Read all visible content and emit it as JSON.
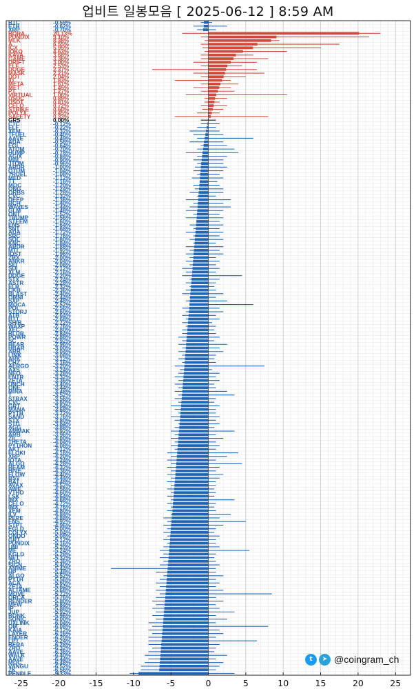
{
  "title": "업비트 일봉모음 [ 2025-06-12 ]  8:59 AM",
  "credit": {
    "handle": "@coingram_ch",
    "icons": [
      "twitter-icon",
      "telegram-icon"
    ]
  },
  "colors": {
    "positive": "#d2493b",
    "negative": "#1f65b6",
    "neutral": "#111111"
  },
  "chart_data": {
    "type": "bar",
    "orientation": "horizontal",
    "xlim": [
      -27,
      27
    ],
    "xticks": [
      -25,
      -20,
      -15,
      -10,
      -5,
      0,
      5,
      10,
      15,
      20,
      25
    ],
    "grid": true,
    "series_fields": [
      "symbol",
      "change_pct",
      "low_pct",
      "high_pct"
    ],
    "rows": [
      [
        "BTC",
        -0.59,
        -1.0,
        0.5
      ],
      [
        "ETH",
        -0.62,
        -2.0,
        2.5
      ],
      [
        "XRP",
        -0.7,
        -1.5,
        1.0
      ],
      [
        "BORA",
        20.13,
        -3.5,
        23.0
      ],
      [
        "PUNDIX",
        9.1,
        -1.0,
        21.5
      ],
      [
        "MLK",
        8.38,
        -0.5,
        9.5
      ],
      [
        "A",
        6.55,
        -1.0,
        17.5
      ],
      [
        "ICX",
        5.95,
        -0.8,
        15.0
      ],
      [
        "IOKO",
        4.63,
        -0.5,
        10.5
      ],
      [
        "KAVA",
        3.68,
        -1.0,
        6.0
      ],
      [
        "GAME2",
        3.36,
        -1.0,
        8.0
      ],
      [
        "DRIFT",
        3.0,
        -2.0,
        6.5
      ],
      [
        "ELF",
        2.53,
        -1.0,
        4.5
      ],
      [
        "DOGE2",
        2.37,
        -7.5,
        6.5
      ],
      [
        "MASK",
        2.21,
        -2.0,
        7.5
      ],
      [
        "DOT",
        2.04,
        -1.0,
        5.0
      ],
      [
        "ID",
        1.83,
        -4.5,
        3.0
      ],
      [
        "META",
        1.61,
        -1.0,
        4.0
      ],
      [
        "MET",
        1.45,
        -2.0,
        3.0
      ],
      [
        "PT",
        1.27,
        -1.0,
        3.5
      ],
      [
        "VIRTUAL",
        1.06,
        -3.0,
        10.5
      ],
      [
        "USDC",
        0.89,
        -0.5,
        2.5
      ],
      [
        "USDT",
        0.81,
        -0.5,
        1.5
      ],
      [
        "CELO",
        0.72,
        -1.0,
        2.5
      ],
      [
        "STRIKE",
        0.6,
        -0.8,
        2.0
      ],
      [
        "POLYX",
        0.45,
        -1.5,
        1.5
      ],
      [
        "SAFETY",
        0.33,
        -4.5,
        8.0
      ],
      [
        "GRS",
        0.0,
        -1.0,
        1.0
      ],
      [
        "CTC",
        -0.12,
        -1.0,
        1.5
      ],
      [
        "ELF2",
        -0.22,
        -1.5,
        1.0
      ],
      [
        "XEM",
        -0.32,
        -2.5,
        1.5
      ],
      [
        "TFUEL",
        -0.4,
        -2.0,
        2.0
      ],
      [
        "AAVE",
        -0.49,
        -1.5,
        6.0
      ],
      [
        "ADA",
        -0.58,
        -2.5,
        2.0
      ],
      [
        "EGL",
        -0.64,
        -1.0,
        2.5
      ],
      [
        "ATOM",
        -0.7,
        -1.5,
        3.5
      ],
      [
        "HUMP",
        -0.78,
        -3.0,
        4.0
      ],
      [
        "AGIX",
        -0.84,
        -1.5,
        2.5
      ],
      [
        "MBL",
        -0.9,
        -2.0,
        2.0
      ],
      [
        "JTOM",
        -0.96,
        -1.5,
        2.0
      ],
      [
        "ARDR",
        -1.0,
        -1.8,
        2.5
      ],
      [
        "QTUM",
        -1.04,
        -2.0,
        2.0
      ],
      [
        "TRUEL",
        -1.08,
        -1.5,
        1.5
      ],
      [
        "MED",
        -1.12,
        -2.2,
        2.0
      ],
      [
        "TT",
        -1.16,
        -1.0,
        1.2
      ],
      [
        "MOC",
        -1.2,
        -2.0,
        1.5
      ],
      [
        "ONG",
        -1.24,
        -1.8,
        2.0
      ],
      [
        "ORBS",
        -1.28,
        -2.5,
        2.0
      ],
      [
        "CVC",
        -1.32,
        -1.5,
        1.0
      ],
      [
        "DEEP",
        -1.36,
        -3.0,
        3.0
      ],
      [
        "BCH",
        -1.4,
        -2.0,
        2.0
      ],
      [
        "WAVES",
        -1.44,
        -2.5,
        3.0
      ],
      [
        "GLM",
        -1.48,
        -3.0,
        2.0
      ],
      [
        "ONT",
        -1.52,
        -2.0,
        1.5
      ],
      [
        "TRUMP",
        -1.56,
        -3.0,
        2.0
      ],
      [
        "STEEM",
        -1.6,
        -1.5,
        1.5
      ],
      [
        "ENS",
        -1.64,
        -2.5,
        2.0
      ],
      [
        "SNT",
        -1.68,
        -2.0,
        1.5
      ],
      [
        "ADA2",
        -1.72,
        -3.0,
        2.0
      ],
      [
        "SRC",
        -1.76,
        -2.0,
        1.5
      ],
      [
        "SOL",
        -1.8,
        -2.5,
        2.0
      ],
      [
        "KNC",
        -1.84,
        -2.0,
        1.0
      ],
      [
        "ARDR2",
        -1.88,
        -3.0,
        2.0
      ],
      [
        "MTL",
        -1.92,
        -2.5,
        1.5
      ],
      [
        "IOST",
        -1.96,
        -3.0,
        2.0
      ],
      [
        "ZRX",
        -2.0,
        -2.5,
        1.0
      ],
      [
        "ANKR",
        -2.04,
        -3.0,
        1.5
      ],
      [
        "SEI",
        -2.08,
        -2.5,
        1.0
      ],
      [
        "SUI",
        -2.12,
        -3.5,
        1.5
      ],
      [
        "XLM",
        -2.16,
        -3.0,
        1.0
      ],
      [
        "DOGE",
        -2.2,
        -3.5,
        4.5
      ],
      [
        "STX",
        -2.24,
        -2.5,
        1.5
      ],
      [
        "ASTR",
        -2.28,
        -3.0,
        1.0
      ],
      [
        "FLR",
        -2.32,
        -2.5,
        0.8
      ],
      [
        "CKB",
        -2.36,
        -3.0,
        1.0
      ],
      [
        "BLAST",
        -2.4,
        -3.5,
        2.0
      ],
      [
        "OMNI",
        -2.44,
        -2.5,
        1.0
      ],
      [
        "SXP",
        -2.48,
        -3.0,
        2.5
      ],
      [
        "MOCA",
        -2.52,
        -2.5,
        6.0
      ],
      [
        "POL",
        -2.56,
        -3.5,
        1.5
      ],
      [
        "STORJ",
        -2.6,
        -3.0,
        2.0
      ],
      [
        "ATH",
        -2.64,
        -3.5,
        1.0
      ],
      [
        "BTT",
        -2.68,
        -3.0,
        1.5
      ],
      [
        "SHIB",
        -2.72,
        -3.5,
        0.5
      ],
      [
        "WAXP",
        -2.76,
        -3.0,
        1.0
      ],
      [
        "XEC",
        -2.8,
        -3.5,
        0.8
      ],
      [
        "BLUR",
        -2.84,
        -3.5,
        1.0
      ],
      [
        "POWR",
        -2.88,
        -4.0,
        1.5
      ],
      [
        "SC",
        -2.92,
        -3.5,
        0.8
      ],
      [
        "BEAR",
        -2.96,
        -4.0,
        2.5
      ],
      [
        "HBAR",
        -3.0,
        -3.5,
        1.5
      ],
      [
        "ARB",
        -3.04,
        -4.0,
        2.0
      ],
      [
        "LINK",
        -3.08,
        -3.5,
        1.0
      ],
      [
        "ARK",
        -3.12,
        -4.0,
        0.8
      ],
      [
        "CHZ",
        -3.16,
        -3.5,
        1.0
      ],
      [
        "AERGO",
        -3.2,
        -4.5,
        7.5
      ],
      [
        "AXS",
        -3.24,
        -3.8,
        0.5
      ],
      [
        "NEO",
        -3.28,
        -4.0,
        1.5
      ],
      [
        "ENTR",
        -3.32,
        -4.5,
        1.0
      ],
      [
        "ZETA",
        -3.36,
        -4.0,
        1.5
      ],
      [
        "UNCH",
        -3.4,
        -4.5,
        0.8
      ],
      [
        "ONE",
        -3.44,
        -4.0,
        1.0
      ],
      [
        "MINA",
        -3.48,
        -4.5,
        2.5
      ],
      [
        "T",
        -3.52,
        -4.0,
        3.5
      ],
      [
        "STRAX",
        -3.56,
        -4.5,
        1.0
      ],
      [
        "CVC2",
        -3.6,
        -4.0,
        0.8
      ],
      [
        "GRT",
        -3.64,
        -5.0,
        1.5
      ],
      [
        "MANA",
        -3.68,
        -4.5,
        1.0
      ],
      [
        "PYTH",
        -3.72,
        -4.0,
        1.0
      ],
      [
        "SAND",
        -3.76,
        -5.0,
        1.5
      ],
      [
        "STX2",
        -3.8,
        -4.5,
        1.0
      ],
      [
        "STG",
        -3.84,
        -4.0,
        1.5
      ],
      [
        "AGG",
        -3.88,
        -4.5,
        0.8
      ],
      [
        "AMMAK",
        -3.92,
        -5.0,
        3.5
      ],
      [
        "ARB2",
        -3.96,
        -4.5,
        1.0
      ],
      [
        "ZIL",
        -4.0,
        -5.0,
        2.0
      ],
      [
        "THETA",
        -4.04,
        -4.5,
        1.0
      ],
      [
        "PYTHON",
        -4.08,
        -5.0,
        1.5
      ],
      [
        "AKT",
        -4.12,
        -4.5,
        1.0
      ],
      [
        "FLOKI",
        -4.16,
        -5.5,
        4.0
      ],
      [
        "XRP2",
        -4.2,
        -5.0,
        2.5
      ],
      [
        "IOTA",
        -4.24,
        -5.5,
        1.0
      ],
      [
        "ALGO",
        -4.28,
        -5.0,
        4.5
      ],
      [
        "BEAM",
        -4.32,
        -5.5,
        1.5
      ],
      [
        "HIVE",
        -4.36,
        -5.0,
        1.0
      ],
      [
        "FLOW",
        -4.4,
        -5.5,
        2.0
      ],
      [
        "BSV",
        -4.44,
        -5.0,
        1.5
      ],
      [
        "BAT",
        -4.48,
        -5.5,
        1.0
      ],
      [
        "AVAX",
        -4.52,
        -5.0,
        1.0
      ],
      [
        "AWE",
        -4.56,
        -5.5,
        0.8
      ],
      [
        "VTHO",
        -4.6,
        -5.0,
        1.0
      ],
      [
        "LSK",
        -4.64,
        -5.5,
        0.8
      ],
      [
        "IMX",
        -4.68,
        -5.0,
        3.5
      ],
      [
        "CELO2",
        -4.72,
        -5.5,
        1.0
      ],
      [
        "IMX2",
        -4.76,
        -5.0,
        0.8
      ],
      [
        "XEM2",
        -4.8,
        -5.5,
        1.0
      ],
      [
        "ILV",
        -4.84,
        -5.0,
        3.0
      ],
      [
        "PEPE",
        -4.88,
        -6.0,
        1.5
      ],
      [
        "ENS2",
        -4.92,
        -5.5,
        5.0
      ],
      [
        "STPT",
        -4.96,
        -6.0,
        2.0
      ],
      [
        "EGLD",
        -5.0,
        -5.5,
        1.0
      ],
      [
        "COLYX",
        -5.04,
        -6.0,
        0.8
      ],
      [
        "ONDO",
        -5.08,
        -5.5,
        1.5
      ],
      [
        "GRT2",
        -5.12,
        -6.0,
        1.0
      ],
      [
        "PUNDIX2",
        -5.16,
        -5.5,
        1.0
      ],
      [
        "UNI",
        -5.2,
        -6.0,
        1.5
      ],
      [
        "ME",
        -5.24,
        -6.5,
        5.5
      ],
      [
        "KGLD",
        -5.28,
        -6.0,
        1.0
      ],
      [
        "NFT",
        -5.32,
        -6.5,
        0.8
      ],
      [
        "ZRO",
        -5.36,
        -6.0,
        1.0
      ],
      [
        "SIGN",
        -5.4,
        -6.5,
        1.5
      ],
      [
        "ANIME",
        -5.44,
        -13.0,
        1.0
      ],
      [
        "HP",
        -5.48,
        -7.0,
        1.0
      ],
      [
        "ALGO2",
        -5.52,
        -6.0,
        2.0
      ],
      [
        "PYTH2",
        -5.56,
        -6.5,
        1.0
      ],
      [
        "ACA",
        -5.6,
        -7.0,
        1.5
      ],
      [
        "ZETA2",
        -5.64,
        -6.5,
        1.0
      ],
      [
        "ALTAME",
        -5.68,
        -7.0,
        2.0
      ],
      [
        "MOVE",
        -5.72,
        -6.5,
        8.5
      ],
      [
        "ORCA",
        -5.76,
        -7.0,
        1.0
      ],
      [
        "RENDER",
        -5.8,
        -7.5,
        2.0
      ],
      [
        "MEW",
        -5.84,
        -7.0,
        1.0
      ],
      [
        "IP",
        -5.88,
        -7.5,
        1.5
      ],
      [
        "JUP",
        -5.92,
        -7.0,
        3.5
      ],
      [
        "BONK",
        -5.96,
        -7.5,
        1.0
      ],
      [
        "SONIC",
        -6.0,
        -7.0,
        2.5
      ],
      [
        "UXLINK",
        -6.04,
        -8.0,
        1.0
      ],
      [
        "OM",
        -6.08,
        -7.5,
        8.0
      ],
      [
        "KAIA",
        -6.12,
        -8.0,
        1.5
      ],
      [
        "LAYER",
        -6.16,
        -7.5,
        2.0
      ],
      [
        "ENDER",
        -6.2,
        -8.0,
        1.0
      ],
      [
        "LPT",
        -6.24,
        -8.0,
        6.5
      ],
      [
        "BERA",
        -6.28,
        -8.0,
        1.5
      ],
      [
        "ZRO2",
        -6.32,
        -7.5,
        1.0
      ],
      [
        "AAVE2",
        -6.36,
        -8.0,
        0.8
      ],
      [
        "WALK",
        -6.4,
        -8.5,
        2.5
      ],
      [
        "AAVE3",
        -6.44,
        -8.0,
        1.0
      ],
      [
        "MOC2",
        -6.48,
        -8.5,
        2.0
      ],
      [
        "VANGU",
        -6.52,
        -9.0,
        1.5
      ],
      [
        "ZK",
        -6.56,
        -9.0,
        1.0
      ],
      [
        "PENDLE",
        -9.33,
        -10.5,
        3.5
      ]
    ]
  }
}
